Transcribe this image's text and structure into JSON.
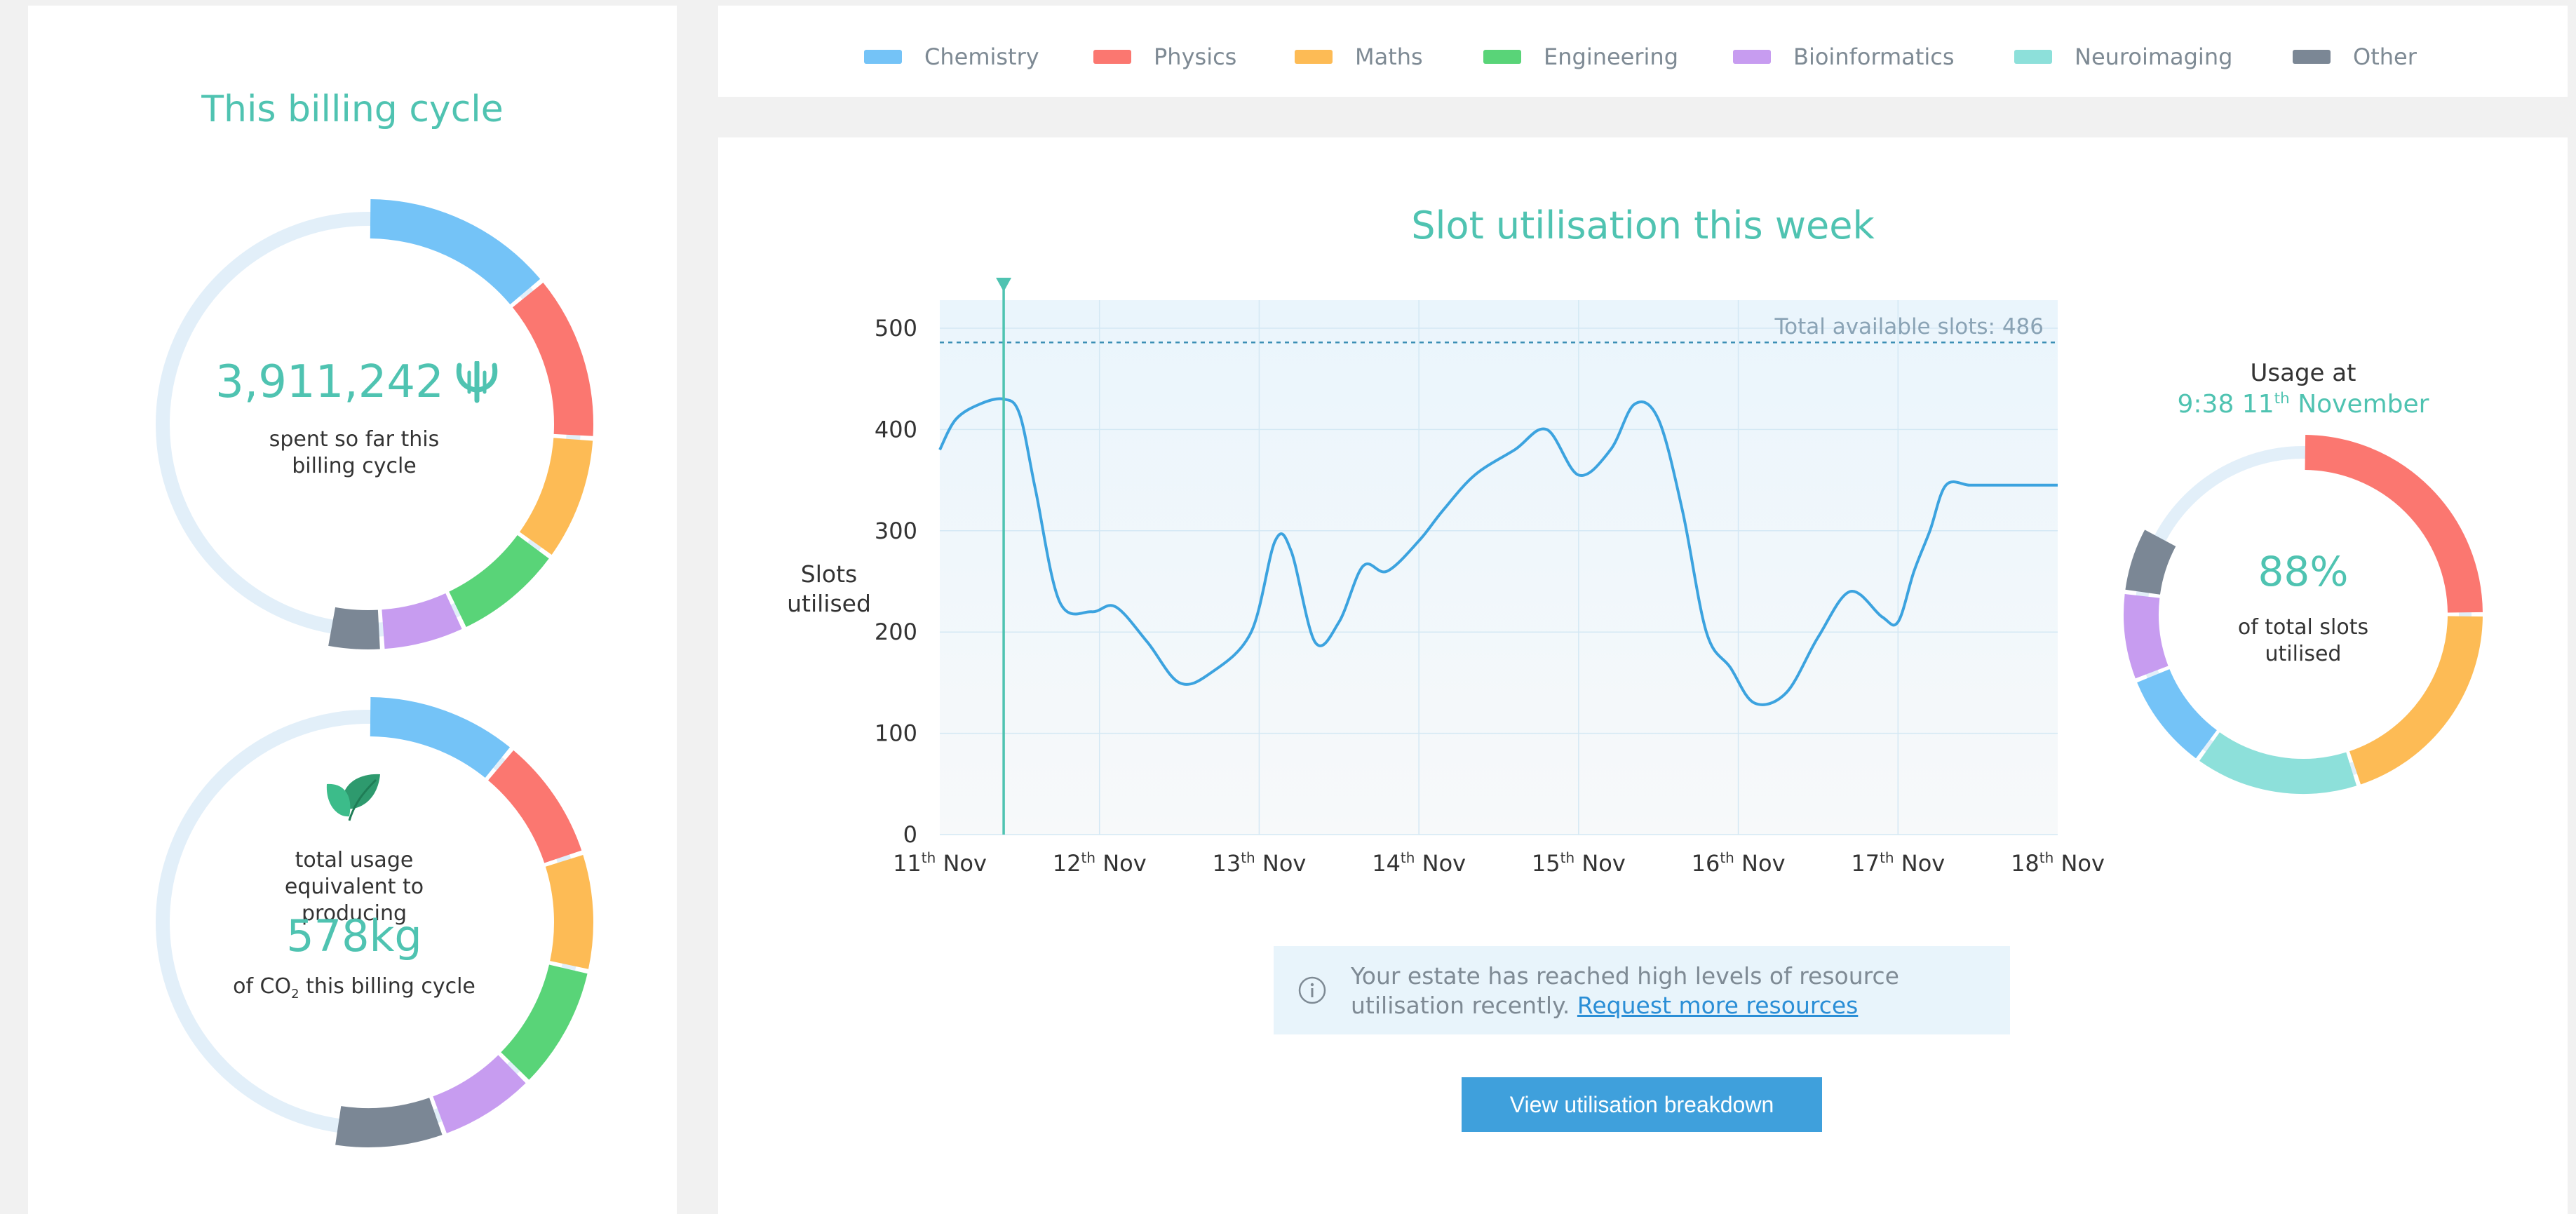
{
  "colors": {
    "chemistry": "#74c3f7",
    "physics": "#fb7770",
    "maths": "#fdbb55",
    "engineering": "#59d478",
    "bioinformatics": "#c79cf0",
    "neuroimaging": "#8de0da",
    "other": "#7b8795",
    "track": "#e2eff9",
    "accent": "#4fc3b1",
    "line": "#3ca3df"
  },
  "legend": [
    {
      "label": "Chemistry",
      "color": "#74c3f7"
    },
    {
      "label": "Physics",
      "color": "#fb7770"
    },
    {
      "label": "Maths",
      "color": "#fdbb55"
    },
    {
      "label": "Engineering",
      "color": "#59d478"
    },
    {
      "label": "Bioinformatics",
      "color": "#c79cf0"
    },
    {
      "label": "Neuroimaging",
      "color": "#8de0da"
    },
    {
      "label": "Other",
      "color": "#7b8795"
    }
  ],
  "billing": {
    "title": "This billing cycle",
    "spent_value": "3,911,242",
    "currency_icon": "psi-icon",
    "spent_caption": "spent so far this billing cycle",
    "co2_intro": "total usage equivalent to producing",
    "co2_value": "578kg",
    "co2_suffix_pre": "of CO",
    "co2_subscript": "2",
    "co2_suffix_post": " this billing cycle",
    "leaf_icon": "leaf-icon",
    "spend_segments": [
      {
        "name": "Chemistry",
        "fraction": 0.14
      },
      {
        "name": "Physics",
        "fraction": 0.12
      },
      {
        "name": "Maths",
        "fraction": 0.09
      },
      {
        "name": "Engineering",
        "fraction": 0.08
      },
      {
        "name": "Bioinformatics",
        "fraction": 0.06
      },
      {
        "name": "Other",
        "fraction": 0.04
      }
    ],
    "co2_segments": [
      {
        "name": "Chemistry",
        "fraction": 0.11
      },
      {
        "name": "Physics",
        "fraction": 0.09
      },
      {
        "name": "Maths",
        "fraction": 0.085
      },
      {
        "name": "Engineering",
        "fraction": 0.09
      },
      {
        "name": "Bioinformatics",
        "fraction": 0.07
      },
      {
        "name": "Other",
        "fraction": 0.08
      }
    ]
  },
  "utilisation": {
    "title": "Slot utilisation this week",
    "usage_at_label": "Usage at",
    "usage_time_pre": "9:38 11",
    "usage_time_sup": "th",
    "usage_time_post": " November",
    "percent": "88%",
    "percent_caption": "of total slots utilised",
    "donut_segments": [
      {
        "name": "Physics",
        "fraction": 0.25
      },
      {
        "name": "Maths",
        "fraction": 0.2
      },
      {
        "name": "Neuroimaging",
        "fraction": 0.15
      },
      {
        "name": "Chemistry",
        "fraction": 0.09
      },
      {
        "name": "Bioinformatics",
        "fraction": 0.08
      },
      {
        "name": "Other",
        "fraction": 0.06
      }
    ]
  },
  "chart_data": {
    "type": "line",
    "ylabel": "Slots utilised",
    "ylim": [
      0,
      500
    ],
    "yticks": [
      0,
      100,
      200,
      300,
      400,
      500
    ],
    "x_ticks": [
      {
        "day": "11",
        "suffix": "th",
        "month": " Nov"
      },
      {
        "day": "12",
        "suffix": "th",
        "month": " Nov"
      },
      {
        "day": "13",
        "suffix": "th",
        "month": " Nov"
      },
      {
        "day": "14",
        "suffix": "th",
        "month": " Nov"
      },
      {
        "day": "15",
        "suffix": "th",
        "month": " Nov"
      },
      {
        "day": "16",
        "suffix": "th",
        "month": " Nov"
      },
      {
        "day": "17",
        "suffix": "th",
        "month": " Nov"
      },
      {
        "day": "18",
        "suffix": "th",
        "month": " Nov"
      }
    ],
    "threshold": {
      "value": 486,
      "label": "Total available slots: 486"
    },
    "marker_day": 0.4,
    "series": [
      {
        "x": [
          0,
          0.1,
          0.25,
          0.4,
          0.5,
          0.6,
          0.75,
          0.95,
          1.1,
          1.3,
          1.5,
          1.7,
          1.95,
          2.1,
          2.2,
          2.35,
          2.5,
          2.65,
          2.8,
          3.0,
          3.15,
          3.35,
          3.6,
          3.8,
          4.0,
          4.2,
          4.35,
          4.5,
          4.65,
          4.8,
          4.95,
          5.1,
          5.3,
          5.5,
          5.7,
          5.9,
          6.0,
          6.1,
          6.2,
          6.3,
          6.45,
          6.6,
          6.8,
          7.0
        ],
        "y": [
          380,
          410,
          425,
          430,
          415,
          340,
          230,
          220,
          225,
          190,
          150,
          160,
          200,
          290,
          280,
          190,
          210,
          265,
          260,
          290,
          320,
          355,
          380,
          400,
          355,
          380,
          425,
          410,
          320,
          200,
          165,
          130,
          140,
          195,
          240,
          215,
          210,
          260,
          300,
          345,
          345,
          345,
          345,
          345
        ]
      }
    ]
  },
  "info": {
    "text": "Your estate has reached high levels of resource utilisation recently.",
    "link": "Request more resources"
  },
  "actions": {
    "view_breakdown": "View utilisation breakdown"
  }
}
